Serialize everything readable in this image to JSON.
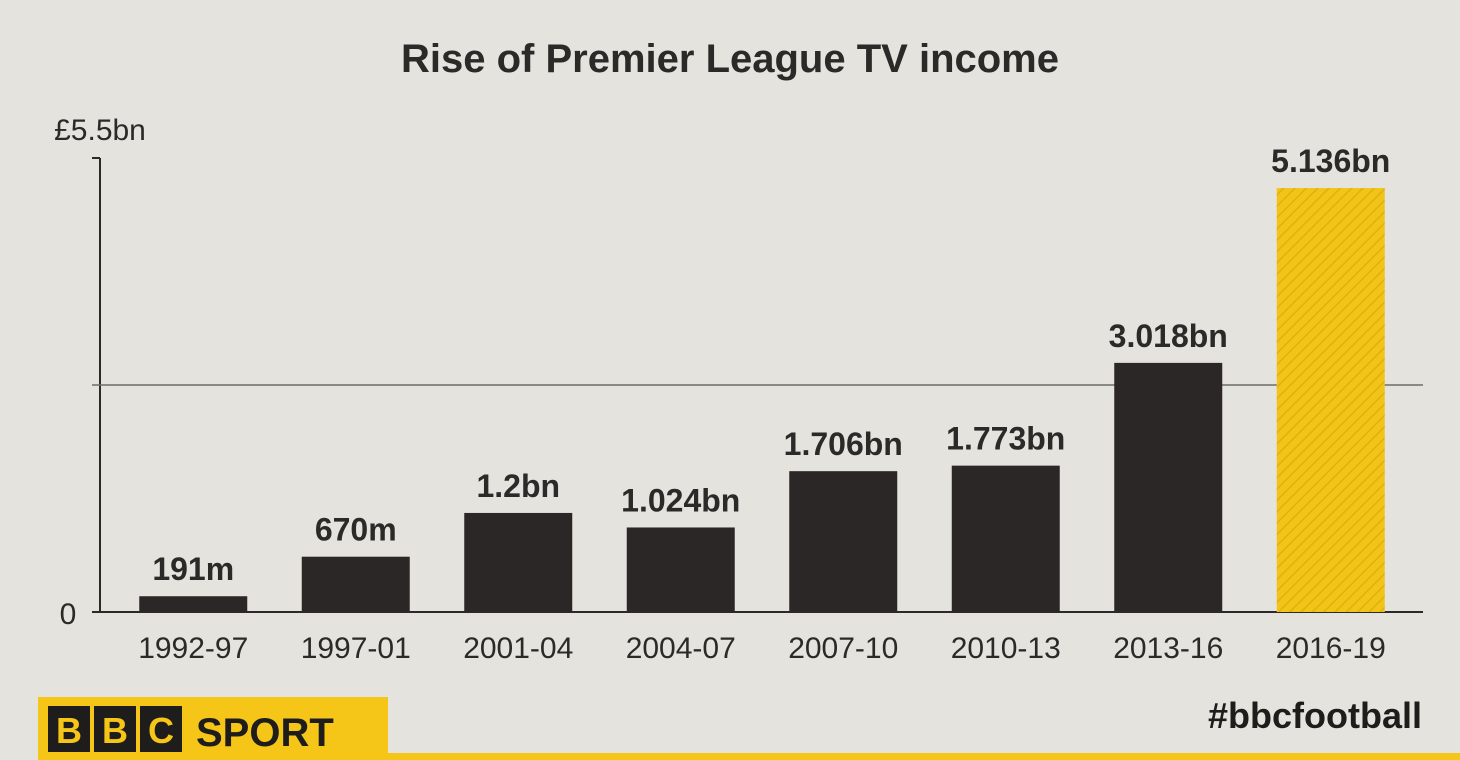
{
  "chart_data": {
    "type": "bar",
    "title": "Rise of Premier League TV income",
    "y_max_label": "£5.5bn",
    "y_zero_label": "0",
    "ylim": [
      0,
      5.5
    ],
    "reference_line": 2.75,
    "categories": [
      "1992-97",
      "1997-01",
      "2001-04",
      "2004-07",
      "2007-10",
      "2010-13",
      "2013-16",
      "2016-19"
    ],
    "values": [
      0.191,
      0.67,
      1.2,
      1.024,
      1.706,
      1.773,
      3.018,
      5.136
    ],
    "value_labels": [
      "191m",
      "670m",
      "1.2bn",
      "1.024bn",
      "1.706bn",
      "1.773bn",
      "3.018bn",
      "5.136bn"
    ],
    "highlight_index": 7,
    "bar_color": "#2b2726",
    "highlight_color": "#f2c418"
  },
  "branding": {
    "hashtag": "#bbcfootball",
    "logo_letters": [
      "B",
      "B",
      "C"
    ],
    "logo_word": "SPORT",
    "logo_color": "#f5c518"
  }
}
